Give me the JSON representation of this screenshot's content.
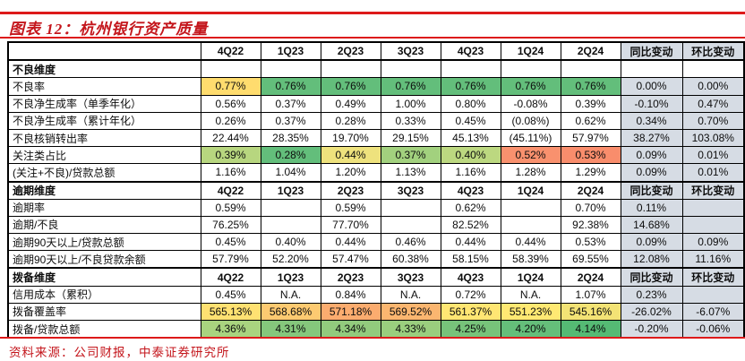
{
  "title": "图表 12：杭州银行资产质量",
  "source_note": "资料来源：公司财报，中泰证券研究所",
  "colors": {
    "accent_red": "#C4161C",
    "rule_red": "#DD1A1A",
    "tail_bg": "#D6DCE4",
    "scale_green": "#63BE7B",
    "scale_yellow": "#FFE172",
    "scale_orange": "#F9916E"
  },
  "table": {
    "columns": [
      "",
      "4Q22",
      "1Q23",
      "2Q23",
      "3Q23",
      "4Q23",
      "1Q24",
      "2Q24",
      "同比变动",
      "环比变动"
    ],
    "rows": [
      {
        "type": "header",
        "label": "",
        "blue_tail": true,
        "cells": [
          "4Q22",
          "1Q23",
          "2Q23",
          "3Q23",
          "4Q23",
          "1Q24",
          "2Q24",
          "同比变动",
          "环比变动"
        ]
      },
      {
        "type": "section",
        "label": "不良维度",
        "blue_tail": false,
        "cells": [
          "",
          "",
          "",
          "",
          "",
          "",
          "",
          "",
          ""
        ]
      },
      {
        "type": "data",
        "label": "不良率",
        "blue_tail": true,
        "cells": [
          {
            "v": "0.77%",
            "bg": "#FFDC6E"
          },
          {
            "v": "0.76%",
            "bg": "#63BE7B"
          },
          {
            "v": "0.76%",
            "bg": "#63BE7B"
          },
          {
            "v": "0.76%",
            "bg": "#63BE7B"
          },
          {
            "v": "0.76%",
            "bg": "#63BE7B"
          },
          {
            "v": "0.76%",
            "bg": "#63BE7B"
          },
          {
            "v": "0.76%",
            "bg": "#63BE7B"
          },
          "0.00%",
          "0.00%"
        ]
      },
      {
        "type": "data",
        "label": "不良净生成率（单季年化）",
        "blue_tail": true,
        "cells": [
          "0.56%",
          "0.37%",
          "0.49%",
          "1.00%",
          "0.80%",
          "-0.08%",
          "0.39%",
          "-0.10%",
          "0.47%"
        ]
      },
      {
        "type": "data",
        "label": "不良净生成率（累计年化）",
        "blue_tail": true,
        "cells": [
          "0.26%",
          "0.37%",
          "0.28%",
          "0.33%",
          "0.45%",
          "(0.08%)",
          "0.62%",
          "0.34%",
          "0.70%"
        ]
      },
      {
        "type": "data",
        "label": "不良核销转出率",
        "blue_tail": true,
        "cells": [
          "22.44%",
          "28.35%",
          "19.70%",
          "29.15%",
          "45.13%",
          "(45.11%)",
          "57.97%",
          "38.27%",
          "103.08%"
        ]
      },
      {
        "type": "data",
        "label": "关注类占比",
        "blue_tail": true,
        "cells": [
          {
            "v": "0.39%",
            "bg": "#B7D67F"
          },
          {
            "v": "0.28%",
            "bg": "#63BE7B"
          },
          {
            "v": "0.44%",
            "bg": "#EEE27D"
          },
          {
            "v": "0.37%",
            "bg": "#A2D17E"
          },
          {
            "v": "0.40%",
            "bg": "#BCD880"
          },
          {
            "v": "0.52%",
            "bg": "#F9916E"
          },
          {
            "v": "0.53%",
            "bg": "#F98D6C"
          },
          "0.09%",
          "0.01%"
        ]
      },
      {
        "type": "data",
        "label": "(关注+不良)/贷款总额",
        "blue_tail": true,
        "cells": [
          "1.16%",
          "1.04%",
          "1.20%",
          "1.13%",
          "1.16%",
          "1.28%",
          "1.29%",
          "0.09%",
          "0.01%"
        ]
      },
      {
        "type": "section",
        "label": "逾期维度",
        "blue_tail": true,
        "cells": [
          "4Q22",
          "1Q23",
          "2Q23",
          "3Q23",
          "4Q23",
          "1Q24",
          "2Q24",
          "同比变动",
          "环比变动"
        ]
      },
      {
        "type": "data",
        "label": "逾期率",
        "blue_tail": true,
        "cells": [
          "0.59%",
          "",
          "0.59%",
          "",
          "0.62%",
          "",
          "0.70%",
          "0.11%",
          ""
        ]
      },
      {
        "type": "data",
        "label": "逾期/不良",
        "blue_tail": true,
        "cells": [
          "76.25%",
          "",
          "77.70%",
          "",
          "82.52%",
          "",
          "92.38%",
          "14.68%",
          ""
        ]
      },
      {
        "type": "data",
        "label": "逾期90天以上/贷款总额",
        "blue_tail": true,
        "cells": [
          "0.45%",
          "0.40%",
          "0.44%",
          "0.46%",
          "0.44%",
          "0.44%",
          "0.53%",
          "0.09%",
          "0.09%"
        ]
      },
      {
        "type": "data",
        "label": "逾期90天以上/不良贷款余额",
        "blue_tail": true,
        "cells": [
          "57.79%",
          "52.20%",
          "57.47%",
          "60.38%",
          "58.15%",
          "58.39%",
          "69.55%",
          "12.08%",
          "11.16%"
        ]
      },
      {
        "type": "section",
        "label": "拨备维度",
        "blue_tail": true,
        "cells": [
          "4Q22",
          "1Q23",
          "2Q23",
          "3Q23",
          "4Q23",
          "1Q24",
          "2Q24",
          "同比变动",
          "环比变动"
        ]
      },
      {
        "type": "data",
        "label": "信用成本（累积）",
        "blue_tail": true,
        "cells": [
          "0.45%",
          "N.A.",
          "0.84%",
          "N.A.",
          "0.72%",
          "N.A.",
          "1.07%",
          "0.23%",
          ""
        ]
      },
      {
        "type": "data",
        "label": "拨备覆盖率",
        "blue_tail": true,
        "cells": [
          {
            "v": "565.13%",
            "bg": "#FFE172"
          },
          {
            "v": "568.68%",
            "bg": "#FDCA71"
          },
          {
            "v": "571.18%",
            "bg": "#FBAC6F"
          },
          {
            "v": "569.52%",
            "bg": "#FBB670"
          },
          {
            "v": "561.37%",
            "bg": "#FFE673"
          },
          {
            "v": "551.23%",
            "bg": "#FFE973"
          },
          {
            "v": "545.16%",
            "bg": "#F3E375"
          },
          "-26.02%",
          "-6.07%"
        ]
      },
      {
        "type": "data",
        "label": "拨备/贷款总额",
        "blue_tail": true,
        "cells": [
          {
            "v": "4.36%",
            "bg": "#A9D47F"
          },
          {
            "v": "4.31%",
            "bg": "#85C77C"
          },
          {
            "v": "4.34%",
            "bg": "#92CB7D"
          },
          {
            "v": "4.33%",
            "bg": "#9ACE7E"
          },
          {
            "v": "4.25%",
            "bg": "#77C37A"
          },
          {
            "v": "4.20%",
            "bg": "#65BE7A"
          },
          {
            "v": "4.14%",
            "bg": "#55BA74"
          },
          "-0.20%",
          "-0.06%"
        ]
      }
    ]
  }
}
